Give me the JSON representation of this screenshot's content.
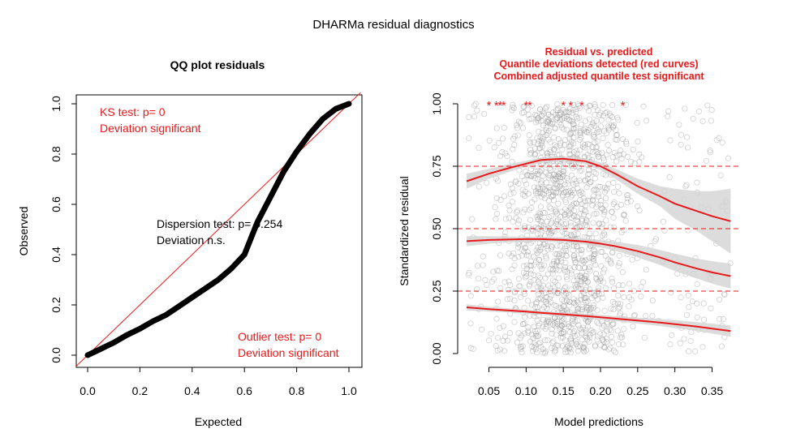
{
  "page_title": "DHARMa residual diagnostics",
  "colors": {
    "red": "#e8191a",
    "black": "#000000",
    "point_grey": "#9a9a9a",
    "band_grey": "#d3d3d3"
  },
  "chart_data": [
    {
      "type": "line",
      "title": "QQ plot residuals",
      "xlabel": "Expected",
      "ylabel": "Observed",
      "xlim": [
        0,
        1
      ],
      "ylim": [
        0,
        1
      ],
      "xticks": [
        "0.0",
        "0.2",
        "0.4",
        "0.6",
        "0.8",
        "1.0"
      ],
      "yticks": [
        "0.0",
        "0.2",
        "0.4",
        "0.6",
        "0.8",
        "1.0"
      ],
      "series": [
        {
          "x": [
            0,
            0.05,
            0.1,
            0.15,
            0.2,
            0.25,
            0.3,
            0.35,
            0.4,
            0.45,
            0.5,
            0.55,
            0.6,
            0.65,
            0.7,
            0.75,
            0.8,
            0.85,
            0.9,
            0.95,
            1.0
          ],
          "y": [
            0,
            0.025,
            0.05,
            0.08,
            0.105,
            0.135,
            0.16,
            0.195,
            0.23,
            0.265,
            0.3,
            0.345,
            0.4,
            0.53,
            0.63,
            0.73,
            0.81,
            0.88,
            0.94,
            0.98,
            1.0
          ]
        }
      ],
      "reference_line": {
        "x": [
          0,
          1
        ],
        "y": [
          0,
          1
        ]
      },
      "annotations": {
        "ks_line1": "KS test: p= 0",
        "ks_line2": "Deviation  significant",
        "dispersion_line1": "Dispersion test: p= 0.254",
        "dispersion_line2": "Deviation  n.s.",
        "outlier_line1": "Outlier test: p= 0",
        "outlier_line2": "Deviation  significant"
      }
    },
    {
      "type": "scatter",
      "title_lines": [
        "Residual vs. predicted",
        "Quantile deviations detected (red curves)",
        "Combined adjusted quantile test significant"
      ],
      "xlabel": "Model predictions",
      "ylabel": "Standardized residual",
      "xlim": [
        0.02,
        0.38
      ],
      "ylim": [
        0,
        1
      ],
      "xticks": [
        "0.05",
        "0.10",
        "0.15",
        "0.20",
        "0.25",
        "0.30",
        "0.35"
      ],
      "yticks": [
        "0.00",
        "0.25",
        "0.50",
        "0.75",
        "1.00"
      ],
      "reference_lines": [
        0.25,
        0.5,
        0.75
      ],
      "quantile_curves": [
        {
          "quantile": 0.75,
          "x": [
            0.02,
            0.05,
            0.08,
            0.1,
            0.12,
            0.15,
            0.18,
            0.2,
            0.22,
            0.25,
            0.28,
            0.3,
            0.33,
            0.35,
            0.375
          ],
          "y": [
            0.69,
            0.72,
            0.745,
            0.76,
            0.775,
            0.78,
            0.77,
            0.75,
            0.72,
            0.67,
            0.63,
            0.6,
            0.57,
            0.55,
            0.53
          ],
          "band_half_width": [
            0.03,
            0.02,
            0.015,
            0.012,
            0.01,
            0.01,
            0.012,
            0.015,
            0.02,
            0.03,
            0.04,
            0.06,
            0.08,
            0.1,
            0.13
          ]
        },
        {
          "quantile": 0.5,
          "x": [
            0.02,
            0.05,
            0.08,
            0.1,
            0.12,
            0.15,
            0.18,
            0.2,
            0.22,
            0.25,
            0.28,
            0.3,
            0.33,
            0.35,
            0.375
          ],
          "y": [
            0.45,
            0.455,
            0.457,
            0.458,
            0.458,
            0.455,
            0.448,
            0.44,
            0.43,
            0.41,
            0.385,
            0.365,
            0.34,
            0.325,
            0.31
          ],
          "band_half_width": [
            0.02,
            0.015,
            0.012,
            0.01,
            0.01,
            0.01,
            0.012,
            0.015,
            0.018,
            0.025,
            0.03,
            0.035,
            0.04,
            0.045,
            0.05
          ]
        },
        {
          "quantile": 0.25,
          "x": [
            0.02,
            0.05,
            0.08,
            0.1,
            0.12,
            0.15,
            0.18,
            0.2,
            0.22,
            0.25,
            0.28,
            0.3,
            0.33,
            0.35,
            0.375
          ],
          "y": [
            0.185,
            0.178,
            0.172,
            0.168,
            0.163,
            0.157,
            0.15,
            0.145,
            0.14,
            0.132,
            0.124,
            0.118,
            0.108,
            0.1,
            0.09
          ],
          "band_half_width": [
            0.012,
            0.01,
            0.008,
            0.008,
            0.008,
            0.008,
            0.008,
            0.01,
            0.01,
            0.012,
            0.014,
            0.016,
            0.018,
            0.02,
            0.022
          ]
        }
      ],
      "outlier_markers_x": [
        0.05,
        0.06,
        0.065,
        0.07,
        0.1,
        0.105,
        0.15,
        0.16,
        0.175,
        0.23
      ],
      "outlier_markers_y": 1.0,
      "n_points": 1500
    }
  ]
}
